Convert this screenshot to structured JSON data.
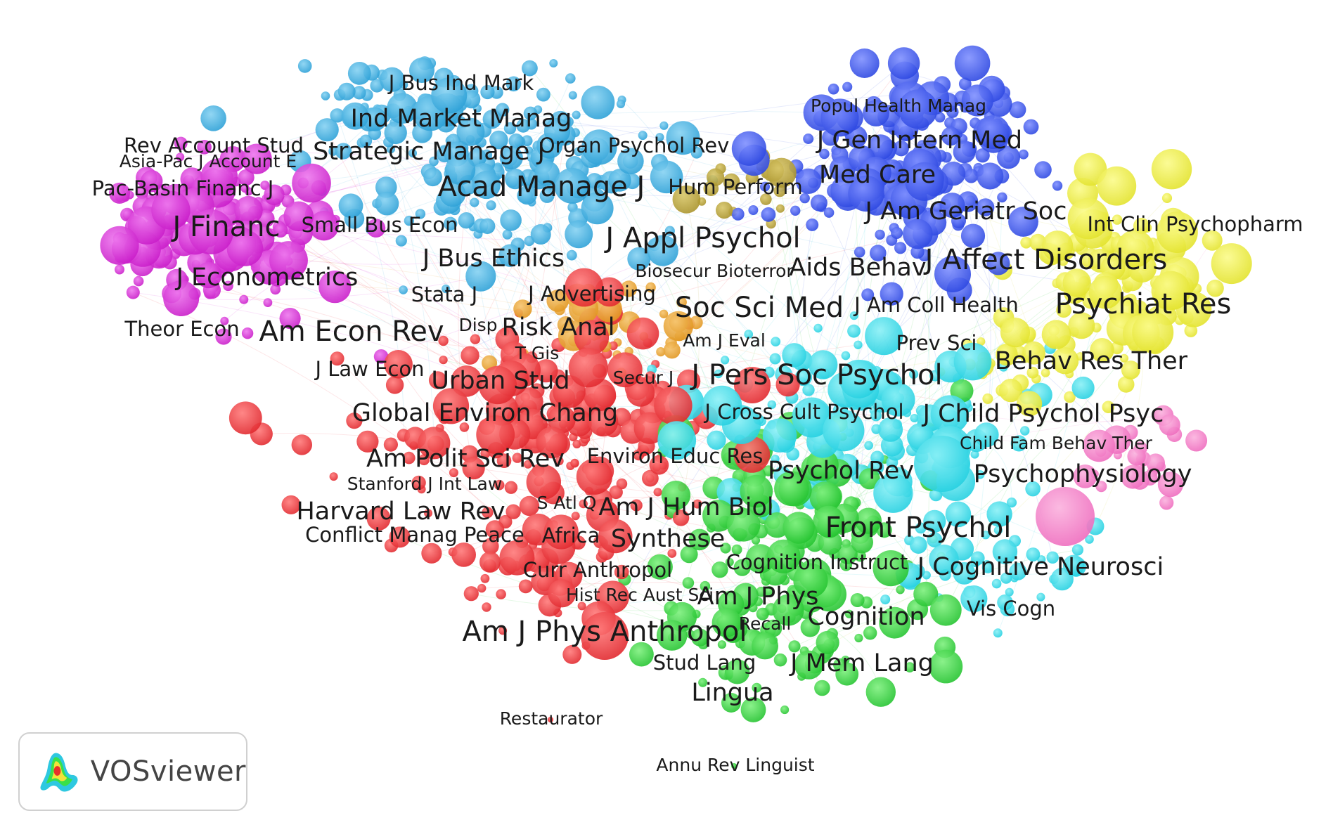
{
  "brand": {
    "name": "VOSviewer",
    "logo": "vosviewer-logo-icon"
  },
  "colors": {
    "red": "#f0383f",
    "green": "#2ecc3a",
    "blue": "#3a57e8",
    "yellow": "#ecec3a",
    "purple": "#d92ad9",
    "cyan": "#33d8e6",
    "skyblue": "#3bb0e0",
    "orange": "#e8a030",
    "pink": "#f27ac8",
    "olive": "#b8a23a"
  },
  "labels": [
    {
      "id": "lbl-j-bus-ind-mark",
      "text": "J Bus Ind Mark",
      "size": "m"
    },
    {
      "id": "lbl-ind-market-manag",
      "text": "Ind Market Manag",
      "size": "l"
    },
    {
      "id": "lbl-popul-health-manag",
      "text": "Popul Health Manag",
      "size": "s"
    },
    {
      "id": "lbl-j-gen-intern-med",
      "text": "J Gen Intern Med",
      "size": "l"
    },
    {
      "id": "lbl-rev-account-stud",
      "text": "Rev Account Stud",
      "size": "m"
    },
    {
      "id": "lbl-asia-pac-j-account-e",
      "text": "Asia-Pac J Account E",
      "size": "s"
    },
    {
      "id": "lbl-strategic-manage-j",
      "text": "Strategic Manage J",
      "size": "l"
    },
    {
      "id": "lbl-organ-psychol-rev",
      "text": "Organ Psychol Rev",
      "size": "m"
    },
    {
      "id": "lbl-med-care",
      "text": "Med Care",
      "size": "l"
    },
    {
      "id": "lbl-pac-basin-financ-j",
      "text": "Pac-Basin Financ J",
      "size": "m"
    },
    {
      "id": "lbl-acad-manage-j",
      "text": "Acad Manage J",
      "size": "xl"
    },
    {
      "id": "lbl-hum-perform",
      "text": "Hum Perform",
      "size": "m"
    },
    {
      "id": "lbl-j-am-geriatr-soc",
      "text": "J Am Geriatr Soc",
      "size": "l"
    },
    {
      "id": "lbl-int-clin-psychopharm",
      "text": "Int Clin Psychopharm",
      "size": "m"
    },
    {
      "id": "lbl-j-financ",
      "text": "J Financ",
      "size": "xl"
    },
    {
      "id": "lbl-small-bus-econ",
      "text": "Small Bus Econ",
      "size": "m"
    },
    {
      "id": "lbl-j-appl-psychol",
      "text": "J Appl Psychol",
      "size": "xl"
    },
    {
      "id": "lbl-j-affect-disorders",
      "text": "J Affect Disorders",
      "size": "xl"
    },
    {
      "id": "lbl-j-bus-ethics",
      "text": "J Bus Ethics",
      "size": "l"
    },
    {
      "id": "lbl-j-econometrics",
      "text": "J Econometrics",
      "size": "l"
    },
    {
      "id": "lbl-biosecur-bioterror",
      "text": "Biosecur Bioterror",
      "size": "s"
    },
    {
      "id": "lbl-aids-behav",
      "text": "Aids Behav",
      "size": "l"
    },
    {
      "id": "lbl-stata-j",
      "text": "Stata J",
      "size": "m"
    },
    {
      "id": "lbl-j-advertising",
      "text": "J Advertising",
      "size": "m"
    },
    {
      "id": "lbl-soc-sci-med",
      "text": "Soc Sci Med",
      "size": "xl"
    },
    {
      "id": "lbl-j-am-coll-health",
      "text": "J Am Coll Health",
      "size": "m"
    },
    {
      "id": "lbl-psychiat-res",
      "text": "Psychiat Res",
      "size": "xl"
    },
    {
      "id": "lbl-theor-econ",
      "text": "Theor Econ",
      "size": "m"
    },
    {
      "id": "lbl-am-econ-rev",
      "text": "Am Econ Rev",
      "size": "xl"
    },
    {
      "id": "lbl-disp",
      "text": "Disp",
      "size": "s"
    },
    {
      "id": "lbl-risk-anal",
      "text": "Risk Anal",
      "size": "l"
    },
    {
      "id": "lbl-am-j-eval",
      "text": "Am J Eval",
      "size": "s"
    },
    {
      "id": "lbl-prev-sci",
      "text": "Prev Sci",
      "size": "m"
    },
    {
      "id": "lbl-t-gis",
      "text": "T Gis",
      "size": "s"
    },
    {
      "id": "lbl-behav-res-ther",
      "text": "Behav Res Ther",
      "size": "l"
    },
    {
      "id": "lbl-j-law-econ",
      "text": "J Law Econ",
      "size": "m"
    },
    {
      "id": "lbl-urban-stud",
      "text": "Urban Stud",
      "size": "l"
    },
    {
      "id": "lbl-secur-j",
      "text": "Secur J",
      "size": "s"
    },
    {
      "id": "lbl-j-pers-soc-psychol",
      "text": "J Pers Soc Psychol",
      "size": "xl"
    },
    {
      "id": "lbl-global-environ-chang",
      "text": "Global Environ Chang",
      "size": "l"
    },
    {
      "id": "lbl-j-cross-cult-psychol",
      "text": "J Cross Cult Psychol",
      "size": "m"
    },
    {
      "id": "lbl-j-child-psychol-psyc",
      "text": "J Child Psychol Psyc",
      "size": "l"
    },
    {
      "id": "lbl-child-fam-behav-ther",
      "text": "Child Fam Behav Ther",
      "size": "s"
    },
    {
      "id": "lbl-am-polit-sci-rev",
      "text": "Am Polit Sci Rev",
      "size": "l"
    },
    {
      "id": "lbl-environ-educ-res",
      "text": "Environ Educ Res",
      "size": "m"
    },
    {
      "id": "lbl-psychol-rev",
      "text": "Psychol Rev",
      "size": "l"
    },
    {
      "id": "lbl-psychophysiology",
      "text": "Psychophysiology",
      "size": "l"
    },
    {
      "id": "lbl-stanford-j-int-law",
      "text": "Stanford J Int Law",
      "size": "s"
    },
    {
      "id": "lbl-s-atl-q",
      "text": "S Atl Q",
      "size": "s"
    },
    {
      "id": "lbl-am-j-hum-biol",
      "text": "Am J Hum Biol",
      "size": "l"
    },
    {
      "id": "lbl-harvard-law-rev",
      "text": "Harvard Law Rev",
      "size": "l"
    },
    {
      "id": "lbl-front-psychol",
      "text": "Front Psychol",
      "size": "xl"
    },
    {
      "id": "lbl-conflict-manag-peace",
      "text": "Conflict Manag Peace",
      "size": "m"
    },
    {
      "id": "lbl-africa",
      "text": "Africa",
      "size": "m"
    },
    {
      "id": "lbl-synthese",
      "text": "Synthese",
      "size": "l"
    },
    {
      "id": "lbl-cognition-instruct",
      "text": "Cognition Instruct",
      "size": "m"
    },
    {
      "id": "lbl-j-cognitive-neurosci",
      "text": "J Cognitive Neurosci",
      "size": "l"
    },
    {
      "id": "lbl-curr-anthropol",
      "text": "Curr Anthropol",
      "size": "m"
    },
    {
      "id": "lbl-hist-rec-aust-sci",
      "text": "Hist Rec Aust Sci",
      "size": "s"
    },
    {
      "id": "lbl-am-j-phys",
      "text": "Am J Phys",
      "size": "l"
    },
    {
      "id": "lbl-cognition",
      "text": "Cognition",
      "size": "l"
    },
    {
      "id": "lbl-vis-cogn",
      "text": "Vis Cogn",
      "size": "m"
    },
    {
      "id": "lbl-am-j-phys-anthropol",
      "text": "Am J Phys Anthropol",
      "size": "xl"
    },
    {
      "id": "lbl-recall",
      "text": "Recall",
      "size": "s"
    },
    {
      "id": "lbl-stud-lang",
      "text": "Stud Lang",
      "size": "m"
    },
    {
      "id": "lbl-j-mem-lang",
      "text": "J Mem Lang",
      "size": "l"
    },
    {
      "id": "lbl-lingua",
      "text": "Lingua",
      "size": "l"
    },
    {
      "id": "lbl-restaurator",
      "text": "Restaurator",
      "size": "s"
    },
    {
      "id": "lbl-annu-rev-linguist",
      "text": "Annu Rev Linguist",
      "size": "s"
    }
  ]
}
